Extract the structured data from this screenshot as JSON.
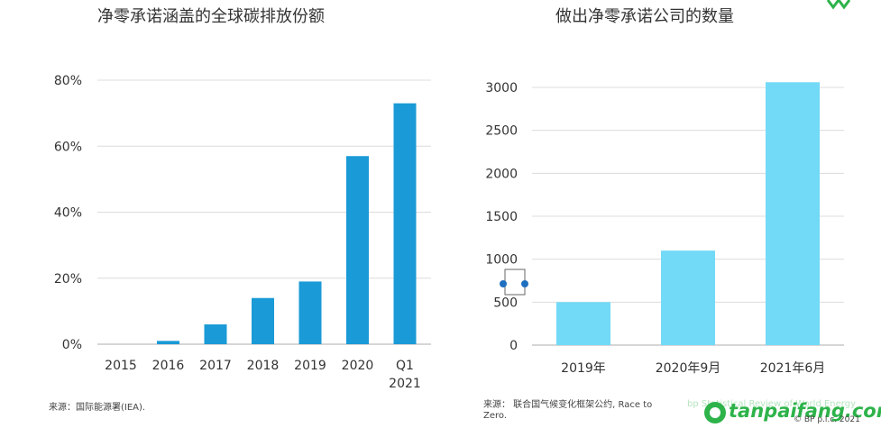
{
  "charts": {
    "left": {
      "title": "净零承诺涵盖的全球碳排放份额",
      "source": "来源：国际能源署(IEA)."
    },
    "right": {
      "title": "做出净零承诺公司的数量",
      "source": "来源：  联合国气候变化框架公约, Race to Zero."
    }
  },
  "chart_data": [
    {
      "type": "bar",
      "title": "净零承诺涵盖的全球碳排放份额",
      "categories": [
        "2015",
        "2016",
        "2017",
        "2018",
        "2019",
        "2020",
        "Q1\n2021"
      ],
      "values": [
        0,
        1,
        6,
        14,
        19,
        57,
        73
      ],
      "ylim": [
        0,
        80
      ],
      "yticks": [
        "0%",
        "20%",
        "40%",
        "60%",
        "80%"
      ],
      "ytick_values": [
        0,
        20,
        40,
        60,
        80
      ],
      "grid": true,
      "color": "#1a9ad6"
    },
    {
      "type": "bar",
      "title": "做出净零承诺公司的数量",
      "categories": [
        "2019年",
        "2020年9月",
        "2021年6月"
      ],
      "values": [
        500,
        1100,
        3060
      ],
      "ylim": [
        0,
        3000
      ],
      "yticks": [
        "0",
        "500",
        "1000",
        "1500",
        "2000",
        "2500",
        "3000"
      ],
      "ytick_values": [
        0,
        500,
        1000,
        1500,
        2000,
        2500,
        3000
      ],
      "grid": true,
      "color": "#72daf7"
    }
  ],
  "watermark": {
    "faint_text": "bp Statistical Review of World Energy",
    "brand": "tanpaifang.com",
    "copyright": "© BP p.l.c. 2021"
  },
  "colors": {
    "left_bar": "#1a9ad6",
    "right_bar": "#72daf7",
    "grid": "#dcdcdc",
    "axis": "#c8c8c8",
    "watermark": "#2db34a",
    "handle": "#1f6fbf"
  }
}
